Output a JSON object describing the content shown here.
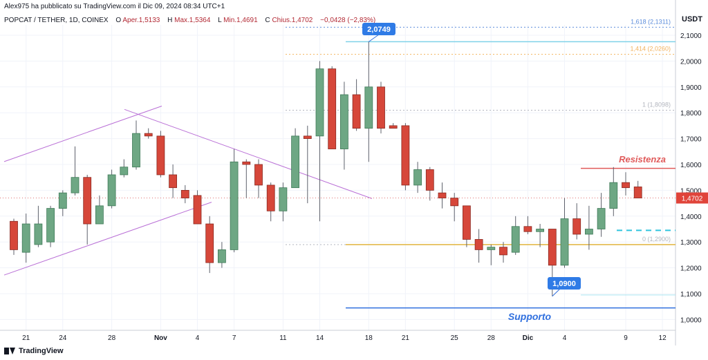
{
  "header": {
    "published": "Alex975 ha pubblicato su TradingView.com il Dic 09, 2024 08:34 UTC+1",
    "symbol": "POPCAT / TETHER, 1D, COINEX",
    "open_label": "O",
    "open": "Aper.1,5133",
    "high_label": "H",
    "high": "Max.1,5364",
    "low_label": "L",
    "low": "Min.1,4691",
    "close_label": "C",
    "close": "Chius.1,4702",
    "change": "−0,0428 (−2,83%)"
  },
  "footer": {
    "brand": "TradingView"
  },
  "colors": {
    "up": "#5b9a76",
    "down": "#d6473a",
    "up_body": "#6ea784"
  },
  "chart_data": {
    "type": "candlestick",
    "unit": "USDT",
    "ylim": [
      0.96,
      2.17
    ],
    "y_ticks": [
      "2,1000",
      "2,0000",
      "1,9000",
      "1,8000",
      "1,7000",
      "1,6000",
      "1,5000",
      "1,4000",
      "1,3000",
      "1,2000",
      "1,1000",
      "1,0000"
    ],
    "y_tick_values": [
      2.1,
      2.0,
      1.9,
      1.8,
      1.7,
      1.6,
      1.5,
      1.4,
      1.3,
      1.2,
      1.1,
      1.0
    ],
    "x_ticks": [
      {
        "label": "21",
        "i": 1
      },
      {
        "label": "24",
        "i": 4
      },
      {
        "label": "28",
        "i": 8
      },
      {
        "label": "Nov",
        "i": 12
      },
      {
        "label": "4",
        "i": 15
      },
      {
        "label": "7",
        "i": 18
      },
      {
        "label": "11",
        "i": 22
      },
      {
        "label": "14",
        "i": 25
      },
      {
        "label": "18",
        "i": 29
      },
      {
        "label": "21",
        "i": 32
      },
      {
        "label": "25",
        "i": 36
      },
      {
        "label": "28",
        "i": 39
      },
      {
        "label": "Dic",
        "i": 42
      },
      {
        "label": "4",
        "i": 45
      },
      {
        "label": "9",
        "i": 50
      },
      {
        "label": "12",
        "i": 53
      }
    ],
    "candles": [
      {
        "o": 1.38,
        "h": 1.39,
        "l": 1.25,
        "c": 1.27
      },
      {
        "o": 1.26,
        "h": 1.41,
        "l": 1.22,
        "c": 1.37
      },
      {
        "o": 1.29,
        "h": 1.44,
        "l": 1.28,
        "c": 1.37
      },
      {
        "o": 1.3,
        "h": 1.44,
        "l": 1.28,
        "c": 1.43
      },
      {
        "o": 1.43,
        "h": 1.5,
        "l": 1.4,
        "c": 1.49
      },
      {
        "o": 1.49,
        "h": 1.67,
        "l": 1.48,
        "c": 1.55
      },
      {
        "o": 1.55,
        "h": 1.56,
        "l": 1.29,
        "c": 1.37
      },
      {
        "o": 1.37,
        "h": 1.48,
        "l": 1.37,
        "c": 1.44
      },
      {
        "o": 1.44,
        "h": 1.58,
        "l": 1.43,
        "c": 1.56
      },
      {
        "o": 1.56,
        "h": 1.62,
        "l": 1.55,
        "c": 1.59
      },
      {
        "o": 1.59,
        "h": 1.77,
        "l": 1.58,
        "c": 1.72
      },
      {
        "o": 1.72,
        "h": 1.74,
        "l": 1.7,
        "c": 1.71
      },
      {
        "o": 1.71,
        "h": 1.73,
        "l": 1.55,
        "c": 1.56
      },
      {
        "o": 1.56,
        "h": 1.6,
        "l": 1.47,
        "c": 1.51
      },
      {
        "o": 1.5,
        "h": 1.52,
        "l": 1.45,
        "c": 1.47
      },
      {
        "o": 1.48,
        "h": 1.5,
        "l": 1.37,
        "c": 1.37
      },
      {
        "o": 1.37,
        "h": 1.4,
        "l": 1.18,
        "c": 1.22
      },
      {
        "o": 1.22,
        "h": 1.3,
        "l": 1.2,
        "c": 1.27
      },
      {
        "o": 1.27,
        "h": 1.66,
        "l": 1.26,
        "c": 1.61
      },
      {
        "o": 1.61,
        "h": 1.62,
        "l": 1.47,
        "c": 1.6
      },
      {
        "o": 1.6,
        "h": 1.62,
        "l": 1.47,
        "c": 1.52
      },
      {
        "o": 1.52,
        "h": 1.53,
        "l": 1.38,
        "c": 1.42
      },
      {
        "o": 1.42,
        "h": 1.53,
        "l": 1.38,
        "c": 1.51
      },
      {
        "o": 1.51,
        "h": 1.74,
        "l": 1.51,
        "c": 1.71
      },
      {
        "o": 1.71,
        "h": 1.75,
        "l": 1.45,
        "c": 1.7
      },
      {
        "o": 1.71,
        "h": 2.0,
        "l": 1.38,
        "c": 1.97
      },
      {
        "o": 1.97,
        "h": 1.98,
        "l": 1.66,
        "c": 1.66
      },
      {
        "o": 1.66,
        "h": 1.92,
        "l": 1.58,
        "c": 1.87
      },
      {
        "o": 1.87,
        "h": 1.93,
        "l": 1.73,
        "c": 1.74
      },
      {
        "o": 1.74,
        "h": 2.075,
        "l": 1.61,
        "c": 1.9
      },
      {
        "o": 1.9,
        "h": 1.92,
        "l": 1.72,
        "c": 1.74
      },
      {
        "o": 1.75,
        "h": 1.76,
        "l": 1.74,
        "c": 1.74
      },
      {
        "o": 1.75,
        "h": 1.76,
        "l": 1.5,
        "c": 1.52
      },
      {
        "o": 1.52,
        "h": 1.61,
        "l": 1.49,
        "c": 1.58
      },
      {
        "o": 1.58,
        "h": 1.59,
        "l": 1.46,
        "c": 1.5
      },
      {
        "o": 1.49,
        "h": 1.53,
        "l": 1.43,
        "c": 1.47
      },
      {
        "o": 1.47,
        "h": 1.49,
        "l": 1.38,
        "c": 1.44
      },
      {
        "o": 1.44,
        "h": 1.44,
        "l": 1.28,
        "c": 1.31
      },
      {
        "o": 1.31,
        "h": 1.35,
        "l": 1.22,
        "c": 1.27
      },
      {
        "o": 1.27,
        "h": 1.29,
        "l": 1.21,
        "c": 1.28
      },
      {
        "o": 1.28,
        "h": 1.3,
        "l": 1.22,
        "c": 1.25
      },
      {
        "o": 1.26,
        "h": 1.4,
        "l": 1.25,
        "c": 1.36
      },
      {
        "o": 1.36,
        "h": 1.4,
        "l": 1.33,
        "c": 1.34
      },
      {
        "o": 1.34,
        "h": 1.37,
        "l": 1.28,
        "c": 1.35
      },
      {
        "o": 1.35,
        "h": 1.35,
        "l": 1.09,
        "c": 1.21
      },
      {
        "o": 1.21,
        "h": 1.47,
        "l": 1.2,
        "c": 1.39
      },
      {
        "o": 1.39,
        "h": 1.45,
        "l": 1.31,
        "c": 1.33
      },
      {
        "o": 1.33,
        "h": 1.44,
        "l": 1.27,
        "c": 1.35
      },
      {
        "o": 1.35,
        "h": 1.49,
        "l": 1.32,
        "c": 1.43
      },
      {
        "o": 1.43,
        "h": 1.59,
        "l": 1.4,
        "c": 1.53
      },
      {
        "o": 1.53,
        "h": 1.57,
        "l": 1.48,
        "c": 1.51
      },
      {
        "o": 1.5133,
        "h": 1.5364,
        "l": 1.4691,
        "c": 1.4702
      }
    ],
    "fib_levels": [
      {
        "label": "1,618 (2,1311)",
        "value": 2.1311,
        "color": "#5b8cdb"
      },
      {
        "label": "1,414 (2,0260)",
        "value": 2.026,
        "color": "#f2b25c"
      },
      {
        "label": "1 (1,8098)",
        "value": 1.8098,
        "color": "#b2b5be"
      },
      {
        "label": "0 (1,2900)",
        "value": 1.29,
        "color": "#b2b5be"
      }
    ],
    "annotations": {
      "high_callout": "2,0749",
      "low_callout": "1,0900",
      "resistance": "Resistenza",
      "support": "Supporto",
      "last_price": "1,4702"
    },
    "levels": {
      "resistance": 1.585,
      "support": 1.045,
      "gold_line": 1.29,
      "cyan_dash": 1.345,
      "cyan_top": 2.075,
      "light_cyan": 1.095
    }
  }
}
